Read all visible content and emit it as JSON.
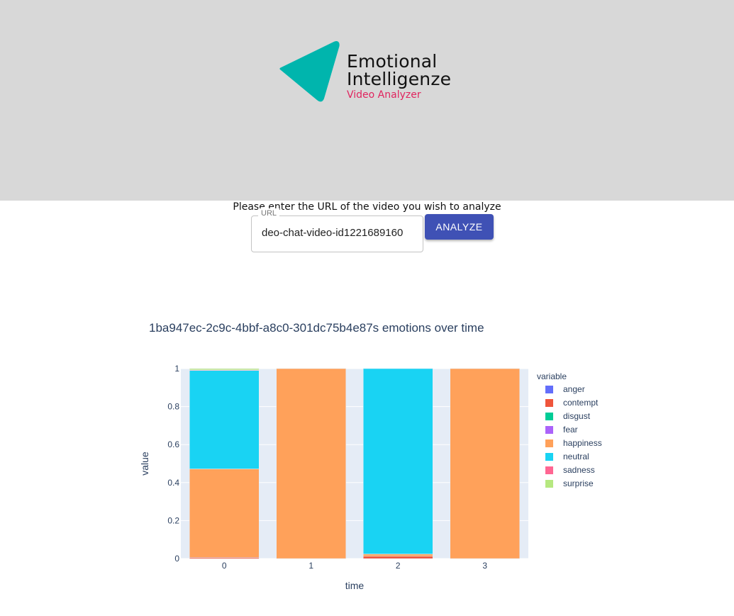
{
  "header": {
    "logo_line1": "Emotional",
    "logo_line2": "Intelligenze",
    "logo_line3": "Video Analyzer",
    "logo_icon": "teal-triangle-play-icon",
    "logo_color": "#00b5ad",
    "subtitle_color": "#e0245e"
  },
  "form": {
    "prompt": "Please enter the URL of the video you wish to analyze",
    "url_label": "URL",
    "url_value": "deo-chat-video-id1221689160",
    "analyze_label": "ANALYZE",
    "button_color": "#3f51b5"
  },
  "chart_data": {
    "type": "bar",
    "stacked": true,
    "title": "1ba947ec-2c9c-4bbf-a8c0-301dc75b4e87s emotions over time",
    "xlabel": "time",
    "ylabel": "value",
    "categories": [
      "0",
      "1",
      "2",
      "3"
    ],
    "ylim": [
      0,
      1
    ],
    "yticks": [
      "0",
      "0.2",
      "0.4",
      "0.6",
      "0.8",
      "1"
    ],
    "legend_title": "variable",
    "legend_position": "right",
    "grid": true,
    "series": [
      {
        "name": "anger",
        "color": "#636efa",
        "values": [
          0.0,
          0.0,
          0.0,
          0.0
        ]
      },
      {
        "name": "contempt",
        "color": "#ef553b",
        "values": [
          0.006,
          0.0,
          0.012,
          0.0
        ]
      },
      {
        "name": "disgust",
        "color": "#00cc96",
        "values": [
          0.0,
          0.0,
          0.0,
          0.0
        ]
      },
      {
        "name": "fear",
        "color": "#ab63fa",
        "values": [
          0.0,
          0.0,
          0.0,
          0.0
        ]
      },
      {
        "name": "happiness",
        "color": "#ffa15a",
        "values": [
          0.466,
          1.0,
          0.012,
          1.0
        ]
      },
      {
        "name": "neutral",
        "color": "#19d3f3",
        "values": [
          0.518,
          0.0,
          0.976,
          0.0
        ]
      },
      {
        "name": "sadness",
        "color": "#ff6692",
        "values": [
          0.003,
          0.0,
          0.0,
          0.0
        ]
      },
      {
        "name": "surprise",
        "color": "#b6e880",
        "values": [
          0.007,
          0.0,
          0.0,
          0.0
        ]
      }
    ]
  }
}
